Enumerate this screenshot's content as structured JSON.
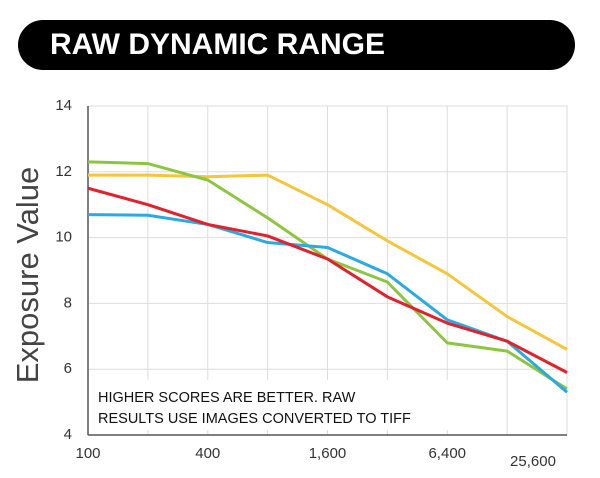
{
  "chart_data": {
    "type": "line",
    "title": "RAW DYNAMIC RANGE",
    "y_label": "Exposure Value",
    "annotation": [
      "HIGHER SCORES ARE BETTER. RAW",
      "RESULTS USE IMAGES CONVERTED TO TIFF"
    ],
    "x": [
      100,
      200,
      400,
      800,
      1600,
      3200,
      6400,
      12800,
      25600
    ],
    "xlim": [
      100,
      25600
    ],
    "log_x": true,
    "xticks": [
      100,
      400,
      {
        "value": 1600,
        "label": "1,600"
      },
      {
        "value": 6400,
        "label": "6,400"
      },
      {
        "value": 25600,
        "label": "25,600"
      }
    ],
    "xminor_ticks": [
      200,
      800,
      3200,
      12800
    ],
    "ylim": [
      4,
      14
    ],
    "yticks": [
      4,
      6,
      8,
      10,
      12,
      14
    ],
    "grid": true,
    "series": [
      {
        "name": "Yellow",
        "color": "#f5c53a",
        "values": [
          11.9,
          11.9,
          11.85,
          11.9,
          11.0,
          9.9,
          8.9,
          7.6,
          6.6
        ]
      },
      {
        "name": "Green",
        "color": "#8cc63f",
        "values": [
          12.3,
          12.25,
          11.75,
          10.6,
          9.35,
          8.65,
          6.8,
          6.55,
          5.4
        ]
      },
      {
        "name": "Blue",
        "color": "#2aaae2",
        "values": [
          10.7,
          10.68,
          10.4,
          9.85,
          9.7,
          8.9,
          7.5,
          6.85,
          5.3
        ]
      },
      {
        "name": "Red",
        "color": "#e2212b",
        "values": [
          11.5,
          11.0,
          10.4,
          10.05,
          9.35,
          8.2,
          7.4,
          6.85,
          5.9
        ]
      }
    ]
  }
}
